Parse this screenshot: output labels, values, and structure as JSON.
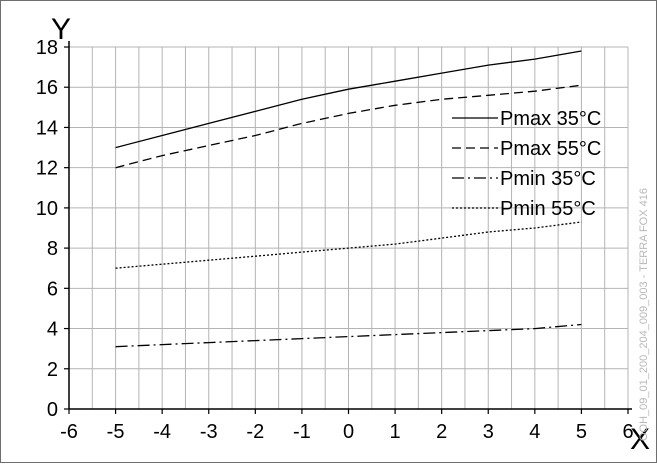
{
  "chart_data": {
    "type": "line",
    "title": "",
    "xlabel": "X",
    "ylabel": "Y",
    "xlim": [
      -6,
      6
    ],
    "ylim": [
      0,
      18
    ],
    "x_ticks": [
      -6,
      -5,
      -4,
      -3,
      -2,
      -1,
      0,
      1,
      2,
      3,
      4,
      5,
      6
    ],
    "y_ticks": [
      0,
      2,
      4,
      6,
      8,
      10,
      12,
      14,
      16,
      18
    ],
    "grid": true,
    "legend_position": "right",
    "series": [
      {
        "name": "Pmax 35°C",
        "style": "solid",
        "x": [
          -5,
          -4,
          -3,
          -2,
          -1,
          0,
          1,
          2,
          3,
          4,
          5
        ],
        "y": [
          13.0,
          13.6,
          14.2,
          14.8,
          15.4,
          15.9,
          16.3,
          16.7,
          17.1,
          17.4,
          17.8
        ]
      },
      {
        "name": "Pmax 55°C",
        "style": "dashed",
        "x": [
          -5,
          -4,
          -3,
          -2,
          -1,
          0,
          1,
          2,
          3,
          4,
          5
        ],
        "y": [
          12.0,
          12.6,
          13.1,
          13.6,
          14.2,
          14.7,
          15.1,
          15.4,
          15.6,
          15.8,
          16.1
        ]
      },
      {
        "name": "Pmin 35°C",
        "style": "dashdot",
        "x": [
          -5,
          -4,
          -3,
          -2,
          -1,
          0,
          1,
          2,
          3,
          4,
          5
        ],
        "y": [
          3.1,
          3.2,
          3.3,
          3.4,
          3.5,
          3.6,
          3.7,
          3.8,
          3.9,
          4.0,
          4.2
        ]
      },
      {
        "name": "Pmin 55°C",
        "style": "dotted",
        "x": [
          -5,
          -4,
          -3,
          -2,
          -1,
          0,
          1,
          2,
          3,
          4,
          5
        ],
        "y": [
          7.0,
          7.2,
          7.4,
          7.6,
          7.8,
          8.0,
          8.2,
          8.5,
          8.8,
          9.0,
          9.3
        ]
      }
    ],
    "watermark": "OOH_09_01_200_204_009_003 - TERRA FOX 416"
  }
}
